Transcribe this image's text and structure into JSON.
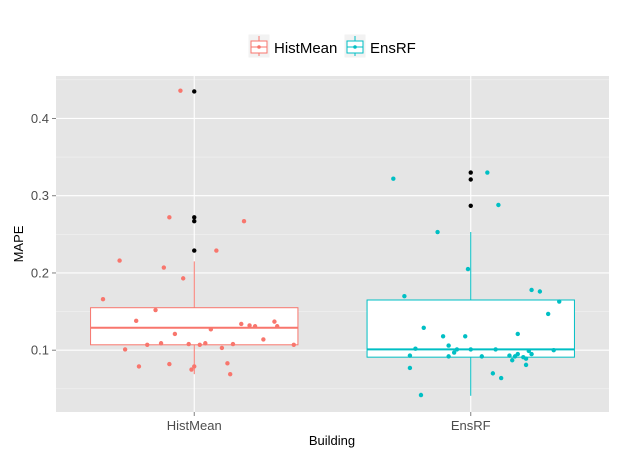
{
  "chart_data": {
    "type": "boxplot",
    "xlabel": "Building",
    "ylabel": "MAPE",
    "categories": [
      "HistMean",
      "EnsRF"
    ],
    "ylim": [
      0.02,
      0.455
    ],
    "yticks": [
      0.1,
      0.2,
      0.3,
      0.4
    ],
    "ytick_labels": [
      "0.1",
      "0.2",
      "0.3",
      "0.4"
    ],
    "legend": {
      "position": "top",
      "entries": [
        "HistMean",
        "EnsRF"
      ]
    },
    "grid": true,
    "colors": {
      "HistMean": "#f8766d",
      "EnsRF": "#00bfc4",
      "outlier": "#000000",
      "panel": "#e5e5e5"
    },
    "series": [
      {
        "name": "HistMean",
        "box": {
          "q1": 0.107,
          "median": 0.129,
          "q3": 0.155,
          "whisker_low": 0.069,
          "whisker_high": 0.215
        },
        "outliers": [
          0.435,
          0.272,
          0.267,
          0.229
        ],
        "points": [
          [
            -0.33,
            0.166
          ],
          [
            -0.27,
            0.216
          ],
          [
            -0.21,
            0.138
          ],
          [
            -0.14,
            0.152
          ],
          [
            -0.09,
            0.272
          ],
          [
            -0.17,
            0.107
          ],
          [
            -0.25,
            0.101
          ],
          [
            -0.07,
            0.121
          ],
          [
            0.02,
            0.107
          ],
          [
            0.08,
            0.229
          ],
          [
            0.12,
            0.083
          ],
          [
            0.17,
            0.134
          ],
          [
            0.2,
            0.132
          ],
          [
            0.22,
            0.131
          ],
          [
            0.25,
            0.114
          ],
          [
            0.29,
            0.137
          ],
          [
            0.3,
            0.131
          ],
          [
            0.36,
            0.107
          ],
          [
            0.18,
            0.267
          ],
          [
            0.14,
            0.108
          ],
          [
            0.1,
            0.103
          ],
          [
            0.06,
            0.127
          ],
          [
            -0.02,
            0.108
          ],
          [
            -0.01,
            0.075
          ],
          [
            -0.11,
            0.207
          ],
          [
            -0.04,
            0.193
          ],
          [
            -0.2,
            0.079
          ],
          [
            -0.09,
            0.082
          ],
          [
            0.0,
            0.079
          ],
          [
            0.13,
            0.069
          ],
          [
            -0.05,
            0.436
          ],
          [
            0.04,
            0.109
          ],
          [
            -0.12,
            0.109
          ]
        ]
      },
      {
        "name": "EnsRF",
        "box": {
          "q1": 0.091,
          "median": 0.101,
          "q3": 0.165,
          "whisker_low": 0.041,
          "whisker_high": 0.253
        },
        "outliers": [
          0.33,
          0.321,
          0.287
        ],
        "points": [
          [
            -0.28,
            0.322
          ],
          [
            -0.24,
            0.17
          ],
          [
            -0.17,
            0.129
          ],
          [
            -0.2,
            0.102
          ],
          [
            -0.22,
            0.093
          ],
          [
            -0.22,
            0.077
          ],
          [
            -0.18,
            0.042
          ],
          [
            -0.12,
            0.253
          ],
          [
            -0.1,
            0.118
          ],
          [
            -0.08,
            0.092
          ],
          [
            -0.05,
            0.101
          ],
          [
            -0.06,
            0.097
          ],
          [
            -0.02,
            0.118
          ],
          [
            -0.01,
            0.205
          ],
          [
            0.06,
            0.33
          ],
          [
            0.1,
            0.288
          ],
          [
            0.09,
            0.101
          ],
          [
            0.08,
            0.07
          ],
          [
            0.11,
            0.064
          ],
          [
            0.14,
            0.093
          ],
          [
            0.15,
            0.087
          ],
          [
            0.17,
            0.095
          ],
          [
            0.19,
            0.091
          ],
          [
            0.2,
            0.089
          ],
          [
            0.2,
            0.081
          ],
          [
            0.21,
            0.099
          ],
          [
            0.16,
            0.092
          ],
          [
            0.17,
            0.121
          ],
          [
            0.22,
            0.095
          ],
          [
            0.22,
            0.178
          ],
          [
            0.25,
            0.176
          ],
          [
            0.28,
            0.147
          ],
          [
            0.32,
            0.163
          ],
          [
            0.3,
            0.1
          ],
          [
            -0.08,
            0.106
          ],
          [
            0.04,
            0.092
          ],
          [
            0.0,
            0.101
          ]
        ]
      }
    ]
  }
}
